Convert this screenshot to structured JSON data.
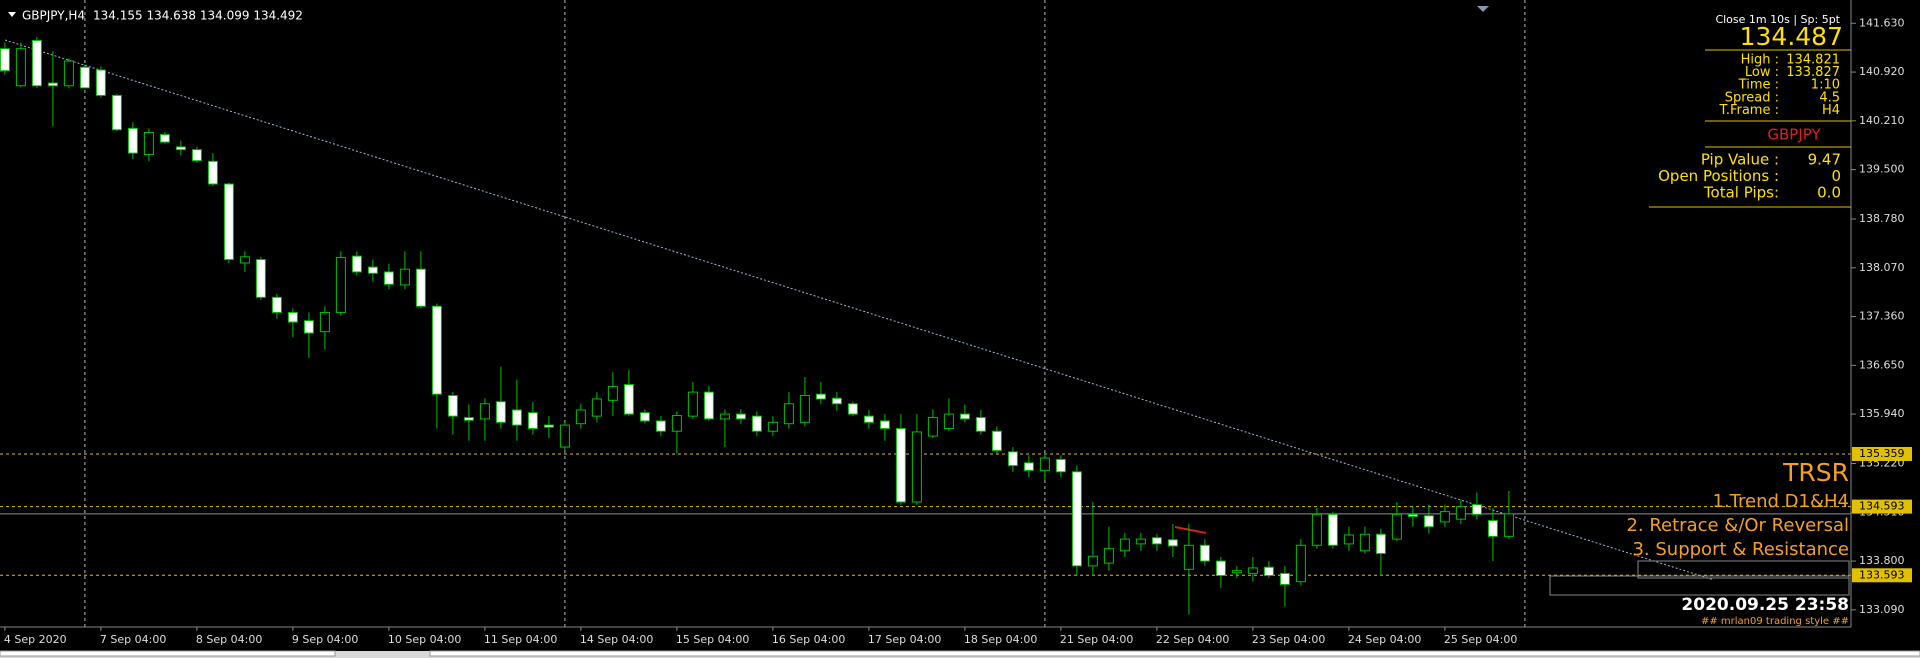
{
  "header": {
    "symbol": "GBPJPY,H4",
    "ohlc": "134.155 134.638 134.099 134.492"
  },
  "info_panel": {
    "status": "Close 1m 10s | Sp: 5pt",
    "price": "134.487",
    "rows": [
      [
        "High :",
        "134.821"
      ],
      [
        "Low :",
        "133.827"
      ],
      [
        "Time :",
        "1:10"
      ],
      [
        "Spread :",
        "4.5"
      ],
      [
        "T.Frame :",
        "H4"
      ]
    ],
    "symbol": "GBPJPY",
    "stats": [
      [
        "Pip Value :",
        "9.47"
      ],
      [
        "Open Positions :",
        "0"
      ],
      [
        "Total Pips:",
        "0.0"
      ]
    ]
  },
  "overlay": {
    "title": "TRSR",
    "lines": [
      "1.Trend D1&H4",
      "2. Retrace &/Or Reversal",
      "3. Support & Resistance"
    ],
    "timestamp": "2020.09.25 23:58",
    "credit": "## mrlan09 trading style ##"
  },
  "chart_data": {
    "type": "candlestick",
    "categories": [
      "4 Sep 2020",
      null,
      null,
      null,
      null,
      null,
      "7 Sep 04:00",
      null,
      null,
      null,
      null,
      null,
      "8 Sep 04:00",
      null,
      null,
      null,
      null,
      null,
      "9 Sep 04:00",
      null,
      null,
      null,
      null,
      null,
      "10 Sep 04:00",
      null,
      null,
      null,
      null,
      null,
      "11 Sep 04:00",
      null,
      null,
      null,
      null,
      null,
      "14 Sep 04:00",
      null,
      null,
      null,
      null,
      null,
      "15 Sep 04:00",
      null,
      null,
      null,
      null,
      null,
      "16 Sep 04:00",
      null,
      null,
      null,
      null,
      null,
      "17 Sep 04:00",
      null,
      null,
      null,
      null,
      null,
      "18 Sep 04:00",
      null,
      null,
      null,
      null,
      null,
      "21 Sep 04:00",
      null,
      null,
      null,
      null,
      null,
      "22 Sep 04:00",
      null,
      null,
      null,
      null,
      null,
      "23 Sep 04:00",
      null,
      null,
      null,
      null,
      null,
      "24 Sep 04:00",
      null,
      null,
      null,
      null,
      null,
      "25 Sep 04:00",
      null,
      null,
      null,
      null
    ],
    "open": [
      141.26,
      140.72,
      141.38,
      140.76,
      140.72,
      140.99,
      140.95,
      140.58,
      140.1,
      139.72,
      140.01,
      139.83,
      139.79,
      139.62,
      139.29,
      138.14,
      138.19,
      137.64,
      137.42,
      137.3,
      137.14,
      137.42,
      138.24,
      138.08,
      138.01,
      137.82,
      138.05,
      137.51,
      136.21,
      135.89,
      135.87,
      136.12,
      136.0,
      135.96,
      135.78,
      135.46,
      135.8,
      135.91,
      136.14,
      136.37,
      135.96,
      135.84,
      135.69,
      135.91,
      136.26,
      135.87,
      135.94,
      135.91,
      135.69,
      135.8,
      135.82,
      136.23,
      136.17,
      136.09,
      135.91,
      135.84,
      135.73,
      134.66,
      135.62,
      135.73,
      135.94,
      135.89,
      135.69,
      135.39,
      135.23,
      135.12,
      135.28,
      135.1,
      133.73,
      133.77,
      133.95,
      134.05,
      134.14,
      134.11,
      133.68,
      134.03,
      133.8,
      133.63,
      133.62,
      133.71,
      133.62,
      133.5,
      134.03,
      134.48,
      134.05,
      133.95,
      134.19,
      134.12,
      134.48,
      134.46,
      134.37,
      134.41,
      134.62,
      134.39,
      134.16
    ],
    "high": [
      141.35,
      141.35,
      141.43,
      141.22,
      141.12,
      141.03,
      141.0,
      140.6,
      140.19,
      140.1,
      140.05,
      139.92,
      139.83,
      139.74,
      139.31,
      138.31,
      138.23,
      137.69,
      137.48,
      137.42,
      137.51,
      138.31,
      138.31,
      138.19,
      138.13,
      138.31,
      138.31,
      137.55,
      136.26,
      136.08,
      136.17,
      136.63,
      136.44,
      136.12,
      135.91,
      135.82,
      136.09,
      136.26,
      136.55,
      136.58,
      136.01,
      135.91,
      135.98,
      136.41,
      136.35,
      136.01,
      136.01,
      135.98,
      135.91,
      136.26,
      136.48,
      136.41,
      136.26,
      136.12,
      136.0,
      135.94,
      135.94,
      135.94,
      136.01,
      136.17,
      136.08,
      136.0,
      135.76,
      135.46,
      135.34,
      135.37,
      135.34,
      135.19,
      134.66,
      134.3,
      134.21,
      134.21,
      134.19,
      134.34,
      134.34,
      134.12,
      133.86,
      133.73,
      133.86,
      133.8,
      133.73,
      134.12,
      134.57,
      134.52,
      134.3,
      134.3,
      134.27,
      134.66,
      134.59,
      134.62,
      134.62,
      134.69,
      134.8,
      134.57,
      134.82
    ],
    "low": [
      140.88,
      140.7,
      140.69,
      140.13,
      140.68,
      140.68,
      140.55,
      140.06,
      139.65,
      139.62,
      139.88,
      139.71,
      139.6,
      139.26,
      138.14,
      138.01,
      137.6,
      137.33,
      137.06,
      136.76,
      136.88,
      137.37,
      137.96,
      137.87,
      137.76,
      137.76,
      137.48,
      135.73,
      135.64,
      135.55,
      135.55,
      135.73,
      135.55,
      135.64,
      135.59,
      135.41,
      135.73,
      135.82,
      135.91,
      135.91,
      135.8,
      135.62,
      135.37,
      135.87,
      135.84,
      135.46,
      135.8,
      135.62,
      135.62,
      135.73,
      135.76,
      136.09,
      135.99,
      135.91,
      135.73,
      135.55,
      134.62,
      134.62,
      135.59,
      135.69,
      135.82,
      135.64,
      135.37,
      135.1,
      135.02,
      134.98,
      135.02,
      133.59,
      133.59,
      133.66,
      133.86,
      133.95,
      133.95,
      133.86,
      133.02,
      133.73,
      133.41,
      133.55,
      133.5,
      133.55,
      133.14,
      133.45,
      133.98,
      133.98,
      133.95,
      133.91,
      133.59,
      134.09,
      134.3,
      134.2,
      134.3,
      134.34,
      134.41,
      133.8,
      134.12
    ],
    "close": [
      140.94,
      141.26,
      140.72,
      140.72,
      141.08,
      140.69,
      140.58,
      140.08,
      139.74,
      140.04,
      139.9,
      139.79,
      139.63,
      139.29,
      138.19,
      138.23,
      137.64,
      137.42,
      137.28,
      137.12,
      137.42,
      138.22,
      138.01,
      137.99,
      137.83,
      138.05,
      137.51,
      136.23,
      135.91,
      135.85,
      136.09,
      135.82,
      135.78,
      135.73,
      135.75,
      135.78,
      136.0,
      136.16,
      136.34,
      135.94,
      135.84,
      135.69,
      135.92,
      136.26,
      135.87,
      135.94,
      135.87,
      135.69,
      135.82,
      136.09,
      136.21,
      136.16,
      136.09,
      135.94,
      135.82,
      135.73,
      134.66,
      135.68,
      135.89,
      135.94,
      135.87,
      135.69,
      135.41,
      135.19,
      135.12,
      135.3,
      135.1,
      133.73,
      133.87,
      133.98,
      134.12,
      134.12,
      134.05,
      134.02,
      134.03,
      133.8,
      133.59,
      133.66,
      133.7,
      133.59,
      133.46,
      134.03,
      134.48,
      134.03,
      134.18,
      134.19,
      133.91,
      134.48,
      134.45,
      134.3,
      134.52,
      134.59,
      134.48,
      134.16,
      134.487
    ],
    "up_color": "#000000",
    "down_color": "#ffffff",
    "wick_color": "#00c000",
    "ylim": [
      132.84,
      141.969
    ],
    "yticks": [
      {
        "value": 141.63,
        "label": "141.630"
      },
      {
        "value": 140.92,
        "label": "140.920"
      },
      {
        "value": 140.21,
        "label": "140.210"
      },
      {
        "value": 139.5,
        "label": "139.500"
      },
      {
        "value": 138.78,
        "label": "138.780"
      },
      {
        "value": 138.07,
        "label": "138.070"
      },
      {
        "value": 137.36,
        "label": "137.360"
      },
      {
        "value": 136.65,
        "label": "136.650"
      },
      {
        "value": 135.94,
        "label": "135.940"
      },
      {
        "value": 135.22,
        "label": "135.220"
      },
      {
        "value": 134.51,
        "label": "134.510"
      },
      {
        "value": 133.8,
        "label": "133.800"
      },
      {
        "value": 133.09,
        "label": "133.090"
      }
    ],
    "levels": [
      135.359,
      134.593,
      133.593
    ],
    "level_color": "#e0c000"
  }
}
